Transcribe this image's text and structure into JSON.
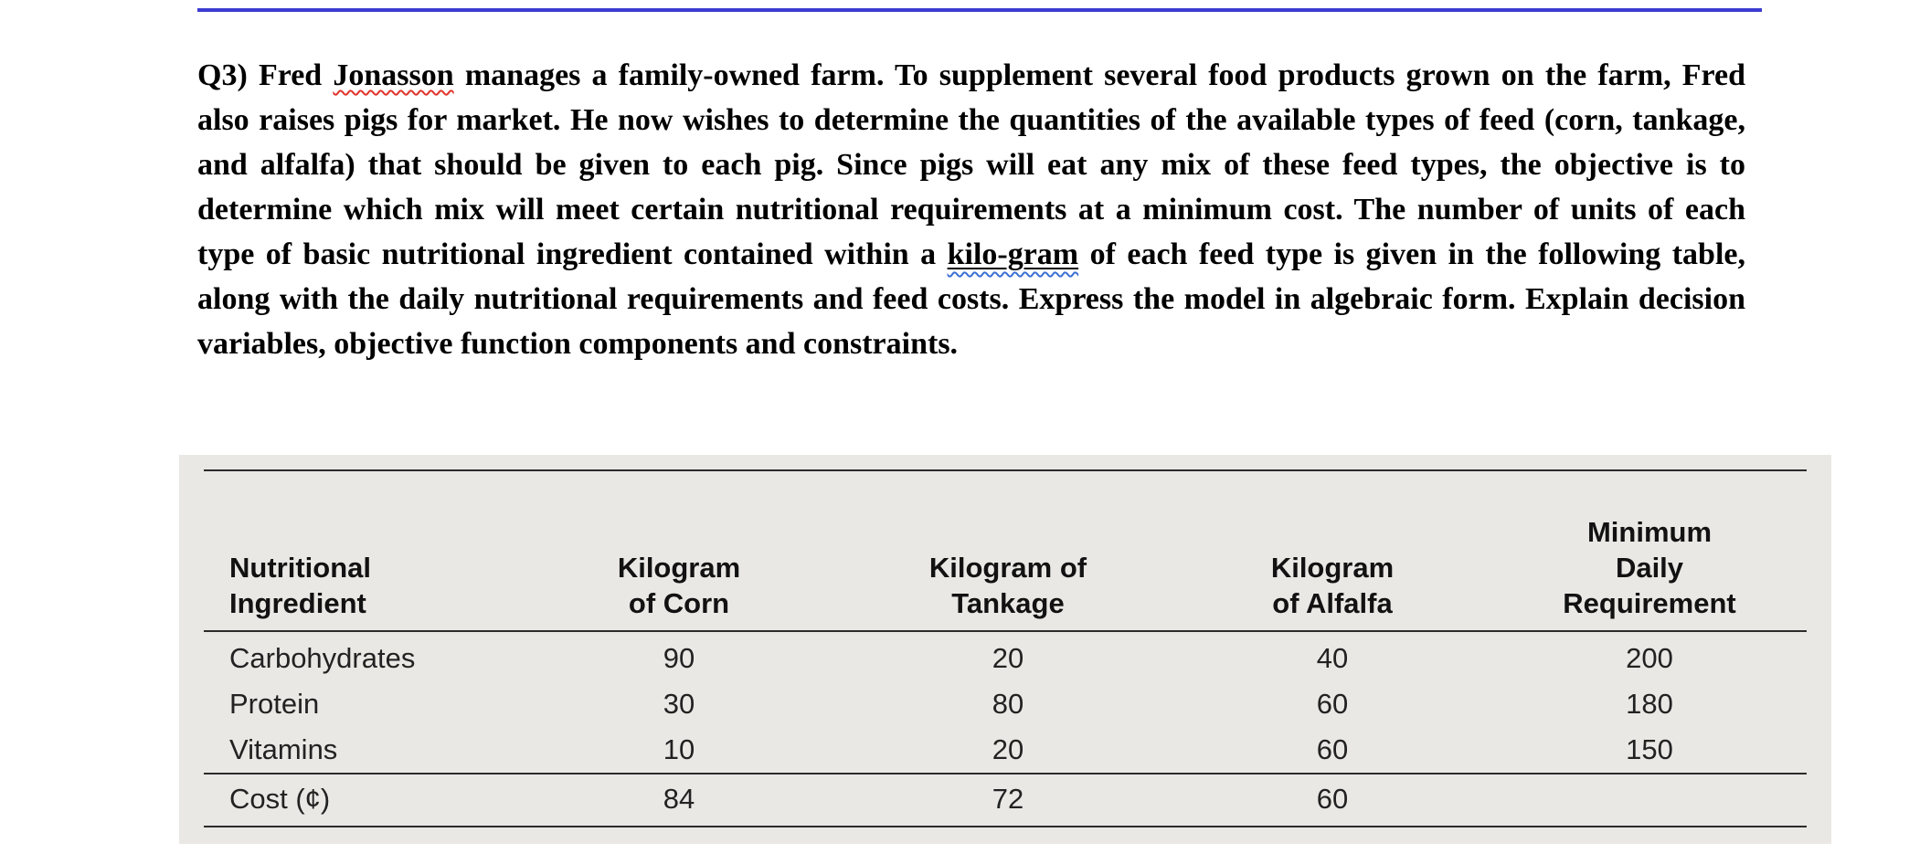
{
  "document": {
    "question": {
      "prefix": "Q3) Fred ",
      "misspelled_word": "Jonasson",
      "middle": " manages a family-owned farm. To supplement several food products grown on the farm, Fred also raises pigs for market. He now wishes to determine the quantities of the available types of feed (corn, tankage, and alfalfa) that should be given to each pig. Since pigs will eat any mix of these feed types, the objective is to determine which mix will meet certain nutritional requirements at a minimum cost. The number of units of each type of basic nutritional ingredient contained within a ",
      "underlined_word": "kilo-gram",
      "suffix": " of each feed type is given in the following table, along with the daily nutritional requirements and feed costs. Express the model in algebraic form. Explain decision variables, objective function components and constraints."
    },
    "colors": {
      "top_line": "#3c3cd1",
      "spellcheck_underline": "#e0342b",
      "grammar_underline": "#3b6fd4",
      "table_background": "#e9e8e5"
    }
  },
  "table": {
    "headers": [
      "Nutritional\nIngredient",
      "Kilogram\nof Corn",
      "Kilogram of\nTankage",
      "Kilogram\nof Alfalfa",
      "Minimum\nDaily\nRequirement"
    ],
    "rows": [
      {
        "label": "Carbohydrates",
        "values": [
          "90",
          "20",
          "40",
          "200"
        ]
      },
      {
        "label": "Protein",
        "values": [
          "30",
          "80",
          "60",
          "180"
        ]
      },
      {
        "label": "Vitamins",
        "values": [
          "10",
          "20",
          "60",
          "150"
        ]
      },
      {
        "label": "Cost (¢)",
        "values": [
          "84",
          "72",
          "60",
          ""
        ]
      }
    ]
  }
}
